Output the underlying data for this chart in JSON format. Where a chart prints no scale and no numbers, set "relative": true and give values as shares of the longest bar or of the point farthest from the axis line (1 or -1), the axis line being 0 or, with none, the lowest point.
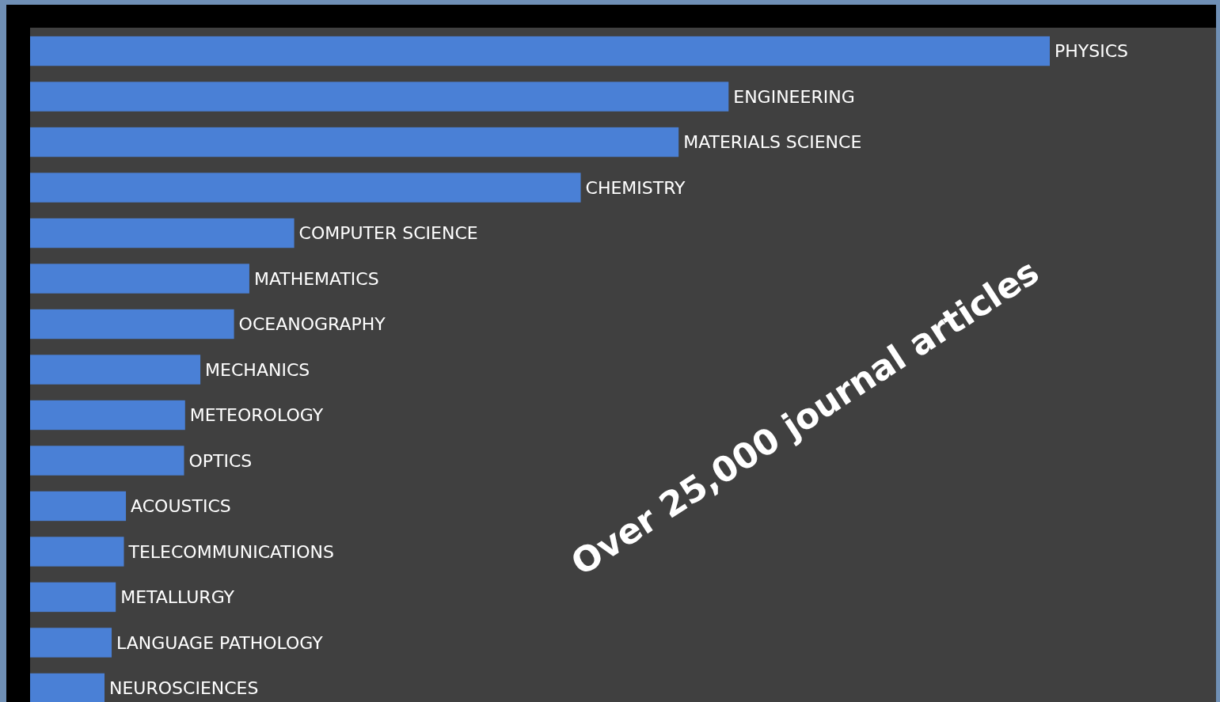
{
  "chart_data": {
    "type": "bar",
    "orientation": "horizontal",
    "relative": true,
    "categories": [
      "PHYSICS",
      "ENGINEERING",
      "MATERIALS SCIENCE",
      "CHEMISTRY",
      "COMPUTER SCIENCE",
      "MATHEMATICS",
      "OCEANOGRAPHY",
      "MECHANICS",
      "METEOROLOGY",
      "OPTICS",
      "ACOUSTICS",
      "TELECOMMUNICATIONS",
      "METALLURGY",
      "LANGUAGE PATHOLOGY",
      "NEUROSCIENCES"
    ],
    "values": [
      1,
      0.685,
      0.636,
      0.54,
      0.259,
      0.215,
      0.2,
      0.167,
      0.152,
      0.151,
      0.094,
      0.092,
      0.084,
      0.08,
      0.073
    ],
    "color": "#4a80d6",
    "annotations": [
      "Over 25,000 journal articles"
    ]
  }
}
